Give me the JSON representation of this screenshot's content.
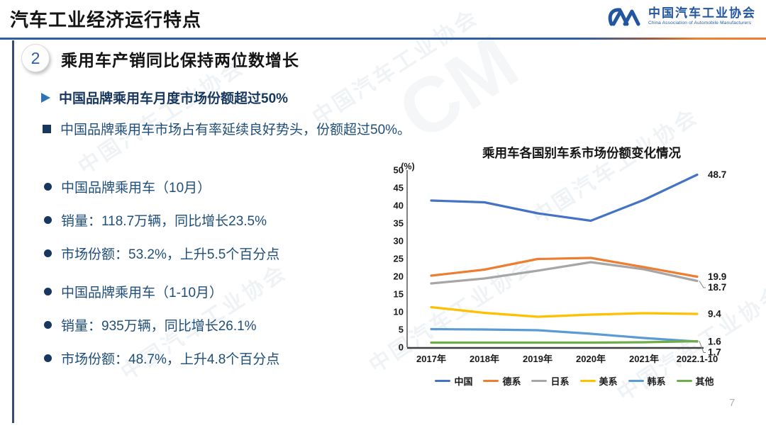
{
  "header": {
    "title": "汽车工业经济运行特点",
    "logo": {
      "name_cn": "中国汽车工业协会",
      "name_en": "China Association of Automobile Manufacturers"
    }
  },
  "section": {
    "number": "2",
    "heading": "乘用车产销同比保持两位数增长"
  },
  "highlights": {
    "arrow_bullet": "中国品牌乘用车月度市场份额超过50%",
    "square_bullet": "中国品牌乘用车市场占有率延续良好势头，份额超过50%。"
  },
  "bullets": {
    "groups": [
      {
        "items": [
          "中国品牌乘用车（10月）",
          "销量：118.7万辆，同比增长23.5%",
          "市场份额：53.2%，上升5.5个百分点"
        ]
      },
      {
        "items": [
          "中国品牌乘用车（1-10月）",
          "销量：935万辆，同比增长26.1%",
          "市场份额：48.7%，上升4.8个百分点"
        ]
      }
    ]
  },
  "chart_data": {
    "type": "line",
    "title": "乘用车各国别车系市场份额变化情况",
    "unit_label": "(%)",
    "categories": [
      "2017年",
      "2018年",
      "2019年",
      "2020年",
      "2021年",
      "2022.1-10"
    ],
    "series": [
      {
        "name": "中国",
        "color": "#4472C4",
        "values": [
          41.4,
          40.9,
          37.8,
          35.7,
          41.6,
          48.7
        ],
        "end_label": "48.7"
      },
      {
        "name": "德系",
        "color": "#ED7D31",
        "values": [
          20.2,
          21.9,
          24.9,
          25.2,
          22.6,
          19.9
        ],
        "end_label": "19.9"
      },
      {
        "name": "日系",
        "color": "#A6A6A6",
        "values": [
          18.0,
          19.4,
          21.6,
          24.0,
          22.0,
          18.7
        ],
        "end_label": "18.7"
      },
      {
        "name": "美系",
        "color": "#FFC000",
        "values": [
          11.3,
          9.7,
          8.6,
          9.2,
          9.6,
          9.4
        ],
        "end_label": "9.4"
      },
      {
        "name": "韩系",
        "color": "#5B9BD5",
        "values": [
          5.1,
          5.0,
          4.8,
          3.8,
          2.6,
          1.6
        ],
        "end_label": "1.6"
      },
      {
        "name": "其他",
        "color": "#70AD47",
        "values": [
          1.3,
          1.3,
          1.3,
          1.3,
          1.4,
          1.7
        ],
        "end_label": "1.7"
      }
    ],
    "ylim": [
      0,
      50
    ],
    "ytick_step": 5,
    "grid": false,
    "legend_position": "bottom"
  },
  "watermark": {
    "text": "中国汽车工业协会",
    "mark": "CM"
  },
  "page_number": "7",
  "colors": {
    "divider_blue": "#2E5FA3",
    "divider_orange": "#ED7D31",
    "text_navy": "#1F4E79",
    "heading_navy": "#17375E",
    "logo_blue": "#2356A0",
    "page_number_gray": "#B3B3B3"
  }
}
